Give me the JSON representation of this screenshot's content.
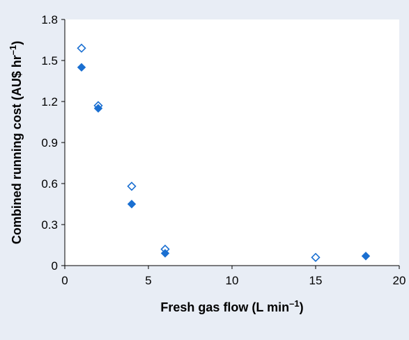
{
  "chart_data": {
    "type": "scatter",
    "title": "",
    "xlabel": "Fresh gas flow (L min",
    "xlabel_sup": "–1",
    "xlabel_end": ")",
    "ylabel": "Combined running cost (AU$ hr",
    "ylabel_sup": "–1",
    "ylabel_end": ")",
    "xlim": [
      0,
      20
    ],
    "ylim": [
      0,
      1.8
    ],
    "xticks": [
      "0",
      "5",
      "10",
      "15",
      "20"
    ],
    "yticks": [
      "0",
      "0.3",
      "0.6",
      "0.9",
      "1.2",
      "1.5",
      "1.8"
    ],
    "grid": false,
    "legend": "none",
    "colors": {
      "marker": "#1a6fd1",
      "background": "#e8edf5",
      "plot_area": "#ffffff"
    },
    "series": [
      {
        "marker": "open-diamond",
        "points": [
          [
            1,
            1.59
          ],
          [
            2,
            1.17
          ],
          [
            4,
            0.58
          ],
          [
            6,
            0.12
          ],
          [
            15,
            0.06
          ]
        ]
      },
      {
        "marker": "filled-diamond",
        "points": [
          [
            1,
            1.45
          ],
          [
            2,
            1.15
          ],
          [
            4,
            0.45
          ],
          [
            6,
            0.09
          ],
          [
            18,
            0.07
          ]
        ]
      }
    ]
  }
}
